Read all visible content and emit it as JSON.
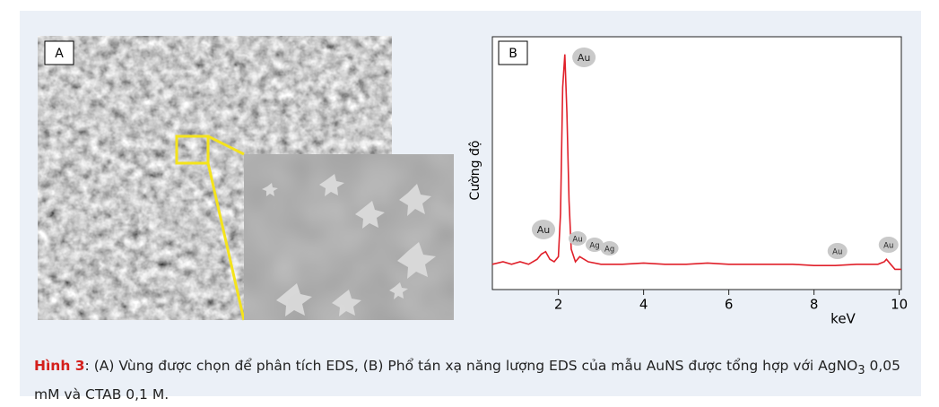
{
  "figure": {
    "panel_a": {
      "label": "A"
    }
  },
  "chart_data": {
    "type": "line",
    "panel_label": "B",
    "x_label": "keV",
    "y_label": "Cường độ",
    "xlim": [
      0.45,
      10.05
    ],
    "ylim": [
      0,
      100
    ],
    "xticks": [
      2,
      4,
      6,
      8,
      10
    ],
    "series": [
      {
        "color": "#e0202a",
        "x": [
          0.45,
          0.7,
          0.9,
          1.1,
          1.3,
          1.5,
          1.6,
          1.7,
          1.8,
          1.9,
          2.0,
          2.05,
          2.1,
          2.15,
          2.2,
          2.25,
          2.3,
          2.4,
          2.5,
          2.7,
          3.0,
          3.5,
          4.0,
          4.5,
          5.0,
          5.5,
          6.0,
          6.5,
          7.0,
          7.5,
          8.0,
          8.5,
          9.0,
          9.5,
          9.65,
          9.7,
          9.8,
          9.9,
          10.05
        ],
        "values": [
          10,
          11,
          10,
          11,
          10,
          12,
          14,
          15,
          12,
          11,
          13,
          30,
          80,
          93,
          70,
          35,
          16,
          11,
          13,
          11,
          10,
          10,
          10.5,
          10,
          10,
          10.5,
          10,
          10,
          10,
          10,
          9.5,
          9.5,
          10,
          10,
          11,
          12,
          10,
          8,
          8
        ]
      }
    ],
    "annotations": [
      {
        "text": "Au",
        "x": 2.6
      },
      {
        "text": "Au",
        "x": 1.65
      },
      {
        "text": "Au",
        "x": 2.45
      },
      {
        "text": "Ag",
        "x": 2.85
      },
      {
        "text": "Ag",
        "x": 3.2
      },
      {
        "text": "Au",
        "x": 8.55
      },
      {
        "text": "Au",
        "x": 9.75
      }
    ]
  },
  "caption": {
    "label": "Hình 3",
    "text_1": ": (A) Vùng được chọn để phân tích EDS, (B) Phổ tán xạ năng lượng EDS của mẫu AuNS được tổng hợp với AgNO",
    "subscript": "3",
    "text_2": " 0,05 mM và CTAB 0,1 M."
  }
}
